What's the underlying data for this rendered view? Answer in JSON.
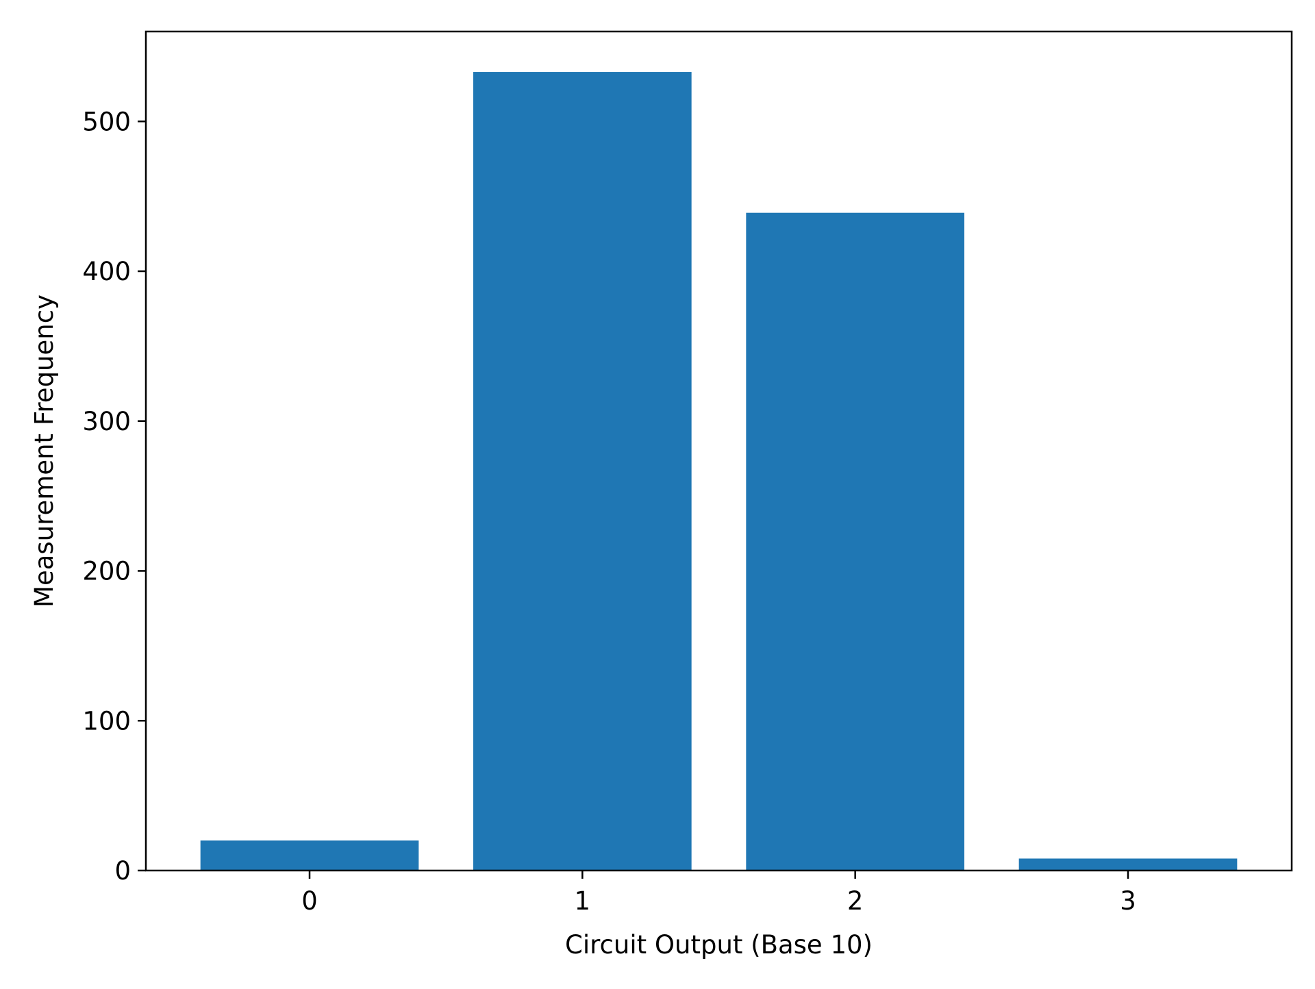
{
  "chart_data": {
    "type": "bar",
    "title": "",
    "xlabel": "Circuit Output (Base 10)",
    "ylabel": "Measurement Frequency",
    "categories": [
      "0",
      "1",
      "2",
      "3"
    ],
    "values": [
      20,
      533,
      439,
      8
    ],
    "ylim": [
      0,
      560
    ],
    "yticks": [
      0,
      100,
      200,
      300,
      400,
      500
    ],
    "grid": false,
    "colors": {
      "bar": "#1f77b4",
      "axes": "#000000",
      "background": "#ffffff"
    }
  }
}
